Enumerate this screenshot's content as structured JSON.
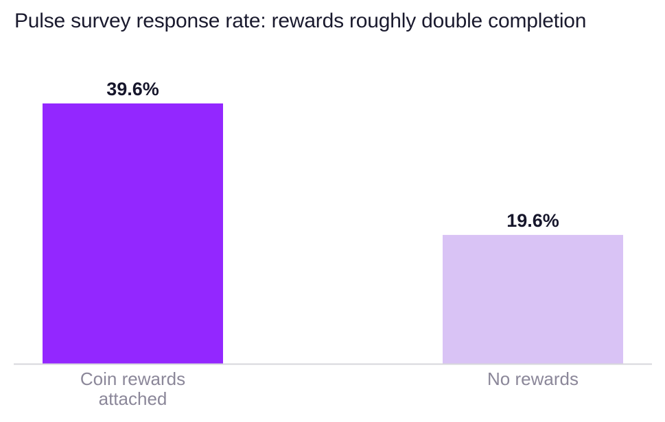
{
  "chart_data": {
    "type": "bar",
    "title": "Pulse survey response rate: rewards roughly double completion",
    "categories": [
      "Coin rewards attached",
      "No rewards"
    ],
    "category_label_lines": [
      [
        "Coin rewards",
        "attached"
      ],
      [
        "No rewards"
      ]
    ],
    "values": [
      39.6,
      19.6
    ],
    "data_labels": [
      "39.6%",
      "19.6%"
    ],
    "bar_colors": [
      "#9327ff",
      "#d9c3f5"
    ],
    "ylim": [
      0,
      40
    ],
    "grid": false,
    "xlabel": "",
    "ylabel": ""
  },
  "colors": {
    "title": "#1a1a2e",
    "data_label": "#16162b",
    "tick_label": "#8b8799",
    "baseline": "#d7d7db"
  }
}
